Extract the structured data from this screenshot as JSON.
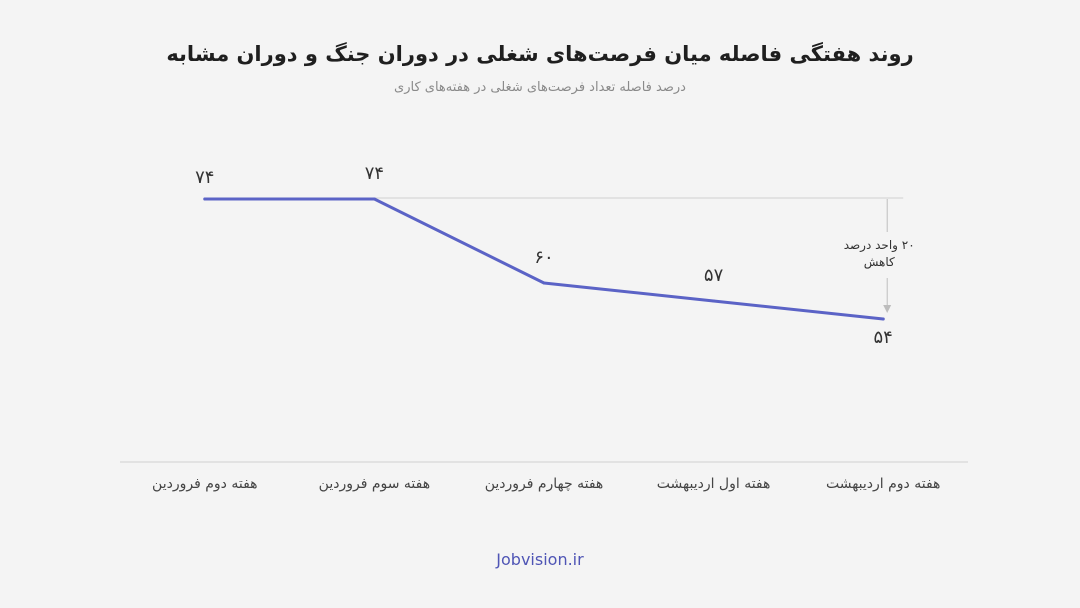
{
  "header": {
    "title": "روند هفتگی فاصله میان فرصت‌های شغلی در دوران جنگ و دوران مشابه",
    "subtitle": "درصد فاصله تعداد فرصت‌های شغلی در هفته‌های کاری"
  },
  "chart_data": {
    "type": "line",
    "categories": [
      "هفته دوم فروردین",
      "هفته سوم فروردین",
      "هفته چهارم فروردین",
      "هفته اول اردیبهشت",
      "هفته دوم اردیبهشت"
    ],
    "series": [
      {
        "values": [
          74,
          74,
          60,
          57,
          54
        ]
      }
    ],
    "data_labels": [
      "۷۴",
      "۷۴",
      "۶۰",
      "۵۷",
      "۵۴"
    ],
    "annotation": {
      "lines": [
        "۲۰ واحد درصد",
        "کاهش"
      ]
    },
    "ylim": [
      40,
      80
    ],
    "grid": false,
    "colors": {
      "line": "#5b63c6",
      "axis": "#d0d0d0",
      "annotation_arrow": "#bdbdbd"
    }
  },
  "footer": {
    "brand": "Jobvision.ir"
  }
}
